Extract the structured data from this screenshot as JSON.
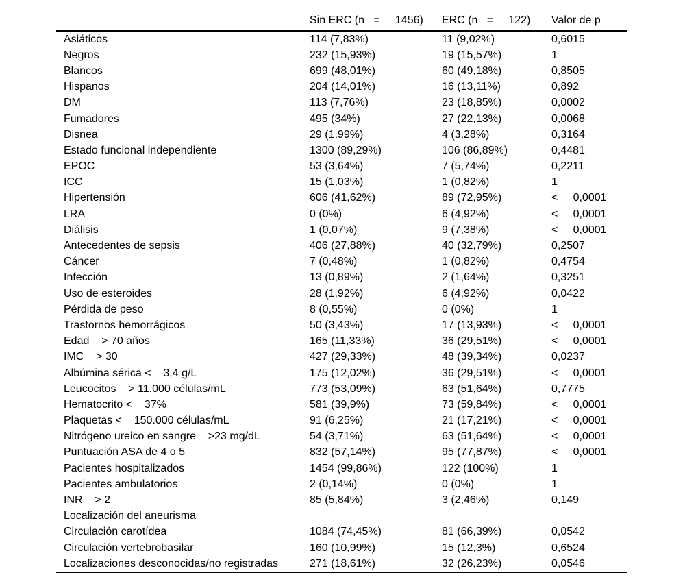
{
  "colors": {
    "background": "#ffffff",
    "text": "#000000",
    "rule": "#000000"
  },
  "table": {
    "header": [
      "",
      "Sin ERC (n   =     1456)",
      "ERC (n   =     122)",
      "Valor de p"
    ],
    "rows": [
      [
        "Asiáticos",
        "114 (7,83%)",
        "11 (9,02%)",
        "0,6015"
      ],
      [
        "Negros",
        "232 (15,93%)",
        "19 (15,57%)",
        "1"
      ],
      [
        "Blancos",
        "699 (48,01%)",
        "60 (49,18%)",
        "0,8505"
      ],
      [
        "Hispanos",
        "204 (14,01%)",
        "16 (13,11%)",
        "0,892"
      ],
      [
        "DM",
        "113 (7,76%)",
        "23 (18,85%)",
        "0,0002"
      ],
      [
        "Fumadores",
        "495 (34%)",
        "27 (22,13%)",
        "0,0068"
      ],
      [
        "Disnea",
        "29 (1,99%)",
        "4 (3,28%)",
        "0,3164"
      ],
      [
        "Estado funcional independiente",
        "1300 (89,29%)",
        "106 (86,89%)",
        "0,4481"
      ],
      [
        "EPOC",
        "53 (3,64%)",
        "7 (5,74%)",
        "0,2211"
      ],
      [
        "ICC",
        "15 (1,03%)",
        "1 (0,82%)",
        "1"
      ],
      [
        "Hipertensión",
        "606 (41,62%)",
        "89 (72,95%)",
        "<     0,0001"
      ],
      [
        "LRA",
        "0 (0%)",
        "6 (4,92%)",
        "<     0,0001"
      ],
      [
        "Diálisis",
        "1 (0,07%)",
        "9 (7,38%)",
        "<     0,0001"
      ],
      [
        "Antecedentes de sepsis",
        "406 (27,88%)",
        "40 (32,79%)",
        "0,2507"
      ],
      [
        "Cáncer",
        "7 (0,48%)",
        "1 (0,82%)",
        "0,4754"
      ],
      [
        "Infección",
        "13 (0,89%)",
        "2 (1,64%)",
        "0,3251"
      ],
      [
        "Uso de esteroides",
        "28 (1,92%)",
        "6 (4,92%)",
        "0,0422"
      ],
      [
        "Pérdida de peso",
        "8 (0,55%)",
        "0 (0%)",
        "1"
      ],
      [
        "Trastornos hemorrágicos",
        "50 (3,43%)",
        "17 (13,93%)",
        "<     0,0001"
      ],
      [
        "Edad    > 70 años",
        "165 (11,33%)",
        "36 (29,51%)",
        "<     0,0001"
      ],
      [
        "IMC    > 30",
        "427 (29,33%)",
        "48 (39,34%)",
        "0,0237"
      ],
      [
        "Albúmina sérica <    3,4 g/L",
        "175 (12,02%)",
        "36 (29,51%)",
        "<     0,0001"
      ],
      [
        "Leucocitos    > 11.000 células/mL",
        "773 (53,09%)",
        "63 (51,64%)",
        "0,7775"
      ],
      [
        "Hematocrito <    37%",
        "581 (39,9%)",
        "73 (59,84%)",
        "<     0,0001"
      ],
      [
        "Plaquetas <    150.000 células/mL",
        "91 (6,25%)",
        "21 (17,21%)",
        "<     0,0001"
      ],
      [
        "Nitrógeno ureico en sangre    >23 mg/dL",
        "54 (3,71%)",
        "63 (51,64%)",
        "<     0,0001"
      ],
      [
        "Puntuación ASA de 4 o 5",
        "832 (57,14%)",
        "95 (77,87%)",
        "<     0,0001"
      ],
      [
        "Pacientes hospitalizados",
        "1454 (99,86%)",
        "122 (100%)",
        "1"
      ],
      [
        "Pacientes ambulatorios",
        "2 (0,14%)",
        "0 (0%)",
        "1"
      ],
      [
        "INR    > 2",
        "85 (5,84%)",
        "3 (2,46%)",
        "0,149"
      ],
      [
        "Localización del aneurisma",
        "",
        "",
        ""
      ],
      [
        "Circulación carotídea",
        "1084 (74,45%)",
        "81 (66,39%)",
        "0,0542"
      ],
      [
        "Circulación vertebrobasilar",
        "160 (10,99%)",
        "15 (12,3%)",
        "0,6524"
      ],
      [
        "Localizaciones desconocidas/no registradas",
        "271 (18,61%)",
        "32 (26,23%)",
        "0,0546"
      ]
    ]
  }
}
